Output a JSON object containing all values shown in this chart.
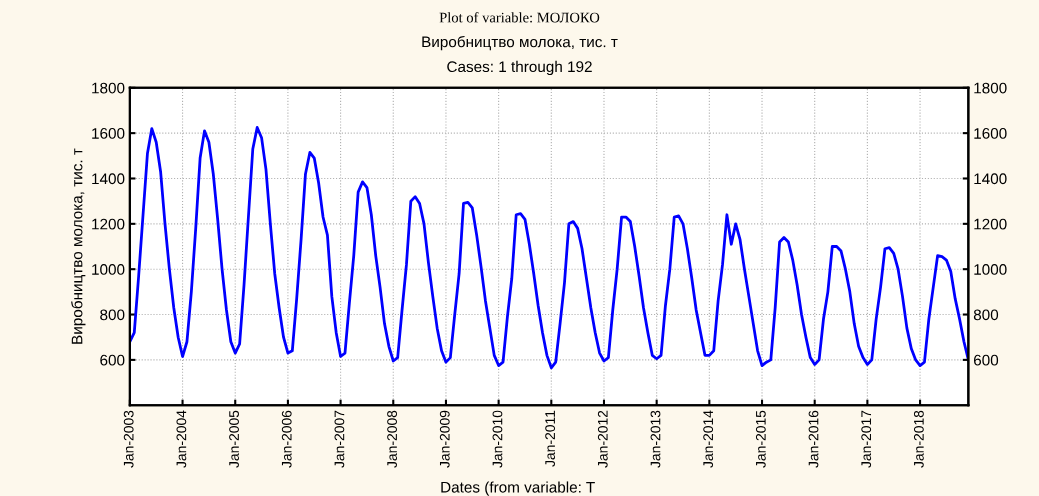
{
  "chart_data": {
    "type": "line",
    "title": "Plot of variable: МОЛОКО",
    "subtitle": "Виробництво молока, тис. т",
    "annotations": [
      "Cases: 1 through 192"
    ],
    "xlabel": "Dates (from variable: T",
    "ylabel": "Виробництво молока, тис. т",
    "categories": [
      "Jan-2003",
      null,
      null,
      null,
      null,
      null,
      null,
      null,
      null,
      null,
      null,
      null,
      "Jan-2004",
      null,
      null,
      null,
      null,
      null,
      null,
      null,
      null,
      null,
      null,
      null,
      "Jan-2005",
      null,
      null,
      null,
      null,
      null,
      null,
      null,
      null,
      null,
      null,
      null,
      "Jan-2006",
      null,
      null,
      null,
      null,
      null,
      null,
      null,
      null,
      null,
      null,
      null,
      "Jan-2007",
      null,
      null,
      null,
      null,
      null,
      null,
      null,
      null,
      null,
      null,
      null,
      "Jan-2008",
      null,
      null,
      null,
      null,
      null,
      null,
      null,
      null,
      null,
      null,
      null,
      "Jan-2009",
      null,
      null,
      null,
      null,
      null,
      null,
      null,
      null,
      null,
      null,
      null,
      "Jan-2010",
      null,
      null,
      null,
      null,
      null,
      null,
      null,
      null,
      null,
      null,
      null,
      "Jan-2011",
      null,
      null,
      null,
      null,
      null,
      null,
      null,
      null,
      null,
      null,
      null,
      "Jan-2012",
      null,
      null,
      null,
      null,
      null,
      null,
      null,
      null,
      null,
      null,
      null,
      "Jan-2013",
      null,
      null,
      null,
      null,
      null,
      null,
      null,
      null,
      null,
      null,
      null,
      "Jan-2014",
      null,
      null,
      null,
      null,
      null,
      null,
      null,
      null,
      null,
      null,
      null,
      "Jan-2015",
      null,
      null,
      null,
      null,
      null,
      null,
      null,
      null,
      null,
      null,
      null,
      "Jan-2016",
      null,
      null,
      null,
      null,
      null,
      null,
      null,
      null,
      null,
      null,
      null,
      "Jan-2017",
      null,
      null,
      null,
      null,
      null,
      null,
      null,
      null,
      null,
      null,
      null,
      "Jan-2018",
      null,
      null,
      null,
      null,
      null,
      null,
      null,
      null,
      null,
      null,
      null
    ],
    "series": [
      {
        "color": "#0000ff",
        "values": [
          680,
          720,
          970,
          1240,
          1510,
          1620,
          1560,
          1430,
          1200,
          1000,
          830,
          700,
          615,
          680,
          900,
          1180,
          1490,
          1610,
          1560,
          1420,
          1220,
          1000,
          820,
          680,
          630,
          670,
          930,
          1230,
          1530,
          1625,
          1580,
          1440,
          1200,
          980,
          830,
          700,
          630,
          640,
          870,
          1130,
          1420,
          1515,
          1490,
          1380,
          1230,
          1150,
          880,
          720,
          615,
          630,
          850,
          1060,
          1340,
          1385,
          1360,
          1240,
          1060,
          920,
          760,
          660,
          595,
          610,
          820,
          1020,
          1300,
          1320,
          1290,
          1200,
          1030,
          880,
          740,
          640,
          590,
          610,
          800,
          980,
          1290,
          1295,
          1270,
          1150,
          1010,
          860,
          740,
          620,
          575,
          590,
          790,
          960,
          1240,
          1245,
          1220,
          1110,
          980,
          840,
          720,
          620,
          565,
          590,
          760,
          940,
          1200,
          1210,
          1180,
          1090,
          960,
          830,
          720,
          630,
          595,
          610,
          820,
          1000,
          1230,
          1230,
          1210,
          1100,
          970,
          830,
          720,
          620,
          605,
          620,
          840,
          1000,
          1230,
          1235,
          1200,
          1090,
          960,
          820,
          720,
          620,
          620,
          640,
          860,
          1020,
          1240,
          1110,
          1200,
          1130,
          1000,
          880,
          760,
          640,
          575,
          590,
          600,
          830,
          1120,
          1140,
          1120,
          1040,
          930,
          800,
          700,
          610,
          580,
          600,
          780,
          900,
          1100,
          1100,
          1080,
          1000,
          900,
          760,
          660,
          610,
          580,
          600,
          780,
          920,
          1090,
          1095,
          1070,
          1000,
          880,
          740,
          650,
          600,
          575,
          590,
          780,
          920,
          1060,
          1055,
          1040,
          990,
          870,
          780,
          680,
          600
        ]
      }
    ],
    "ylim": [
      400,
      1800
    ],
    "yticks": [
      600,
      800,
      1000,
      1200,
      1400,
      1600,
      1800
    ],
    "y2lim": [
      400,
      1800
    ],
    "y2ticks": [
      600,
      800,
      1000,
      1200,
      1400,
      1600,
      1800
    ],
    "grid": true,
    "marker": "none",
    "line_style": "solid"
  }
}
